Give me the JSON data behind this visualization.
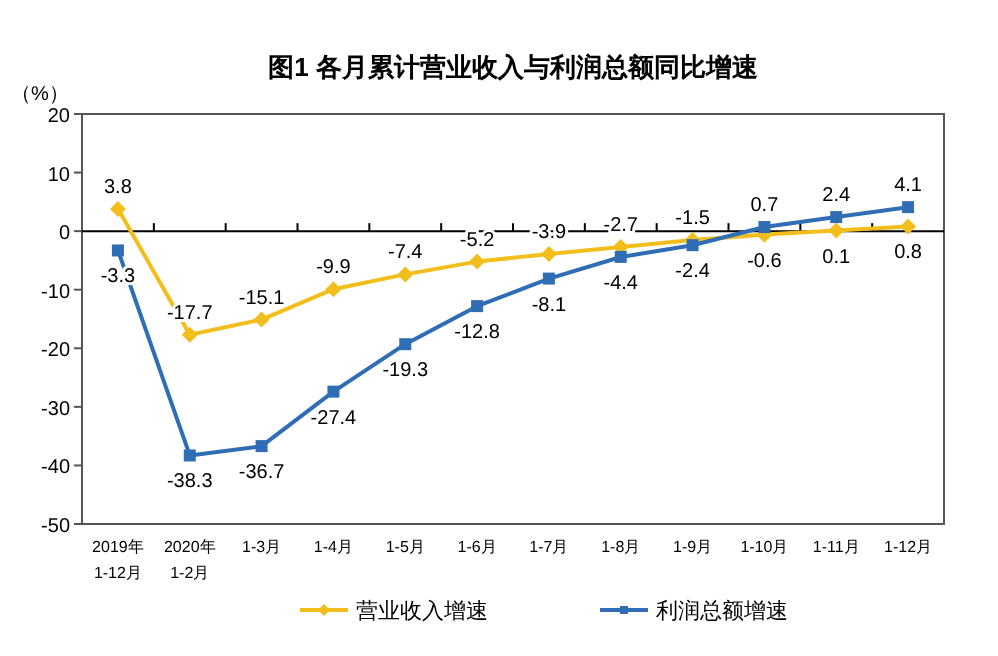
{
  "chart_data": {
    "type": "line",
    "title": "图1  各月累计营业收入与利润总额同比增速",
    "ylabel": "（%）",
    "categories": [
      "2019年\n1-12月",
      "2020年\n1-2月",
      "1-3月",
      "1-4月",
      "1-5月",
      "1-6月",
      "1-7月",
      "1-8月",
      "1-9月",
      "1-10月",
      "1-11月",
      "1-12月"
    ],
    "series": [
      {
        "name": "营业收入增速",
        "color": "#f2be1c",
        "marker": "diamond",
        "values": [
          3.8,
          -17.7,
          -15.1,
          -9.9,
          -7.4,
          -5.2,
          -3.9,
          -2.7,
          -1.5,
          -0.6,
          0.1,
          0.8
        ]
      },
      {
        "name": "利润总额增速",
        "color": "#2f6eb5",
        "marker": "square",
        "values": [
          -3.3,
          -38.3,
          -36.7,
          -27.4,
          -19.3,
          -12.8,
          -8.1,
          -4.4,
          -2.4,
          0.7,
          2.4,
          4.1
        ]
      }
    ],
    "ylim": [
      -50,
      20
    ],
    "yticks": [
      -50,
      -40,
      -30,
      -20,
      -10,
      0,
      10,
      20
    ],
    "ref_lines": [
      {
        "axis": "y",
        "value": 0,
        "color": "#000000"
      }
    ],
    "data_labels": true,
    "grid": false,
    "legend": "bottom",
    "line_style": "solid"
  }
}
